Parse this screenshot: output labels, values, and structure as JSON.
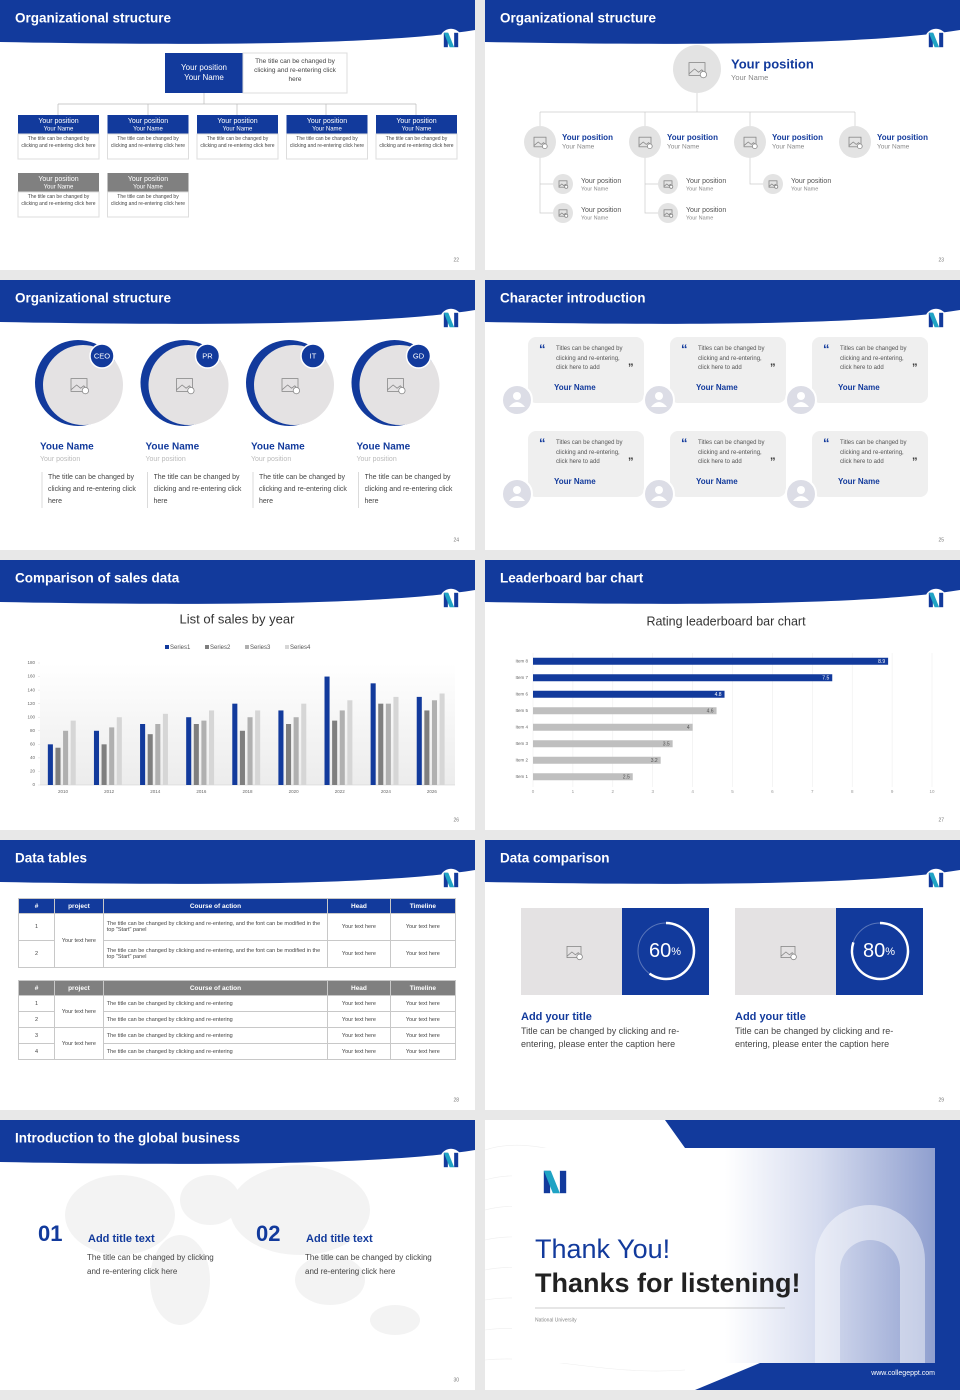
{
  "slides": [
    {
      "title": "Organizational structure",
      "page": "22",
      "top": {
        "position": "Your position",
        "name": "Your Name",
        "text": "The title can be changed by clicking and re-entering click here"
      },
      "boxes": [
        {
          "position": "Your position",
          "name": "Your Name",
          "text": "The title can be changed by clicking and re-entering click here"
        },
        {
          "position": "Your position",
          "name": "Your Name",
          "text": "The title can be changed by clicking and re-entering click here"
        },
        {
          "position": "Your position",
          "name": "Your Name",
          "text": "The title can be changed by clicking and re-entering click here"
        },
        {
          "position": "Your position",
          "name": "Your Name",
          "text": "The title can be changed by clicking and re-entering click here"
        },
        {
          "position": "Your position",
          "name": "Your Name",
          "text": "The title can be changed by clicking and re-entering click here"
        },
        {
          "position": "Your position",
          "name": "Your Name",
          "text": "The title can be changed by clicking and re-entering click here"
        },
        {
          "position": "Your position",
          "name": "Your Name",
          "text": "The title can be changed by clicking and re-entering click here"
        }
      ]
    },
    {
      "title": "Organizational structure",
      "page": "23",
      "top": {
        "position": "Your position",
        "name": "Your Name"
      },
      "level2": [
        {
          "position": "Your position",
          "name": "Your Name"
        },
        {
          "position": "Your position",
          "name": "Your Name"
        },
        {
          "position": "Your position",
          "name": "Your Name"
        },
        {
          "position": "Your position",
          "name": "Your Name"
        }
      ],
      "level3": [
        {
          "position": "Your position",
          "name": "Your Name"
        },
        {
          "position": "Your position",
          "name": "Your Name"
        },
        {
          "position": "Your position",
          "name": "Your Name"
        },
        {
          "position": "Your position",
          "name": "Your Name"
        },
        {
          "position": "Your position",
          "name": "Your Name"
        }
      ]
    },
    {
      "title": "Organizational structure",
      "page": "24",
      "members": [
        {
          "badge": "CEO",
          "name": "Youe Name",
          "position": "Your position",
          "text": "The title can be changed by clicking and re-entering click here"
        },
        {
          "badge": "PR",
          "name": "Youe Name",
          "position": "Your position",
          "text": "The title can be changed by clicking and re-entering click here"
        },
        {
          "badge": "IT",
          "name": "Youe Name",
          "position": "Your position",
          "text": "The title can be changed by clicking and re-entering click here"
        },
        {
          "badge": "GD",
          "name": "Youe Name",
          "position": "Your position",
          "text": "The title can be changed by clicking and re-entering click here"
        }
      ]
    },
    {
      "title": "Character introduction",
      "page": "25",
      "cards": [
        {
          "quote": "Titles can be changed by clicking and re-entering, click here to add",
          "name": "Your Name"
        },
        {
          "quote": "Titles can be changed by clicking and re-entering, click here to add",
          "name": "Your Name"
        },
        {
          "quote": "Titles can be changed by clicking and re-entering, click here to add",
          "name": "Your Name"
        },
        {
          "quote": "Titles can be changed by clicking and re-entering, click here to add",
          "name": "Your Name"
        },
        {
          "quote": "Titles can be changed by clicking and re-entering, click here to add",
          "name": "Your Name"
        },
        {
          "quote": "Titles can be changed by clicking and re-entering, click here to add",
          "name": "Your Name"
        }
      ]
    },
    {
      "title": "Comparison of sales data",
      "page": "26"
    },
    {
      "title": "Leaderboard bar chart",
      "page": "27"
    },
    {
      "title": "Data tables",
      "page": "28",
      "table1": {
        "header": [
          "#",
          "project",
          "Course of action",
          "Head",
          "Timeline"
        ],
        "rows": [
          [
            "1",
            "Your text here",
            "The title can be changed by clicking and re-entering, and the font can be modified in the top \"Start\" panel",
            "Your text here",
            "Your text here"
          ],
          [
            "2",
            "The title can be changed by clicking and re-entering, and the font can be modified in the top \"Start\" panel",
            "Your text here",
            "Your text here"
          ]
        ]
      },
      "table2": {
        "header": [
          "#",
          "project",
          "Course of action",
          "Head",
          "Timeline"
        ],
        "rows": [
          [
            "1",
            "Your text here",
            "The title can be changed by clicking and re-entering",
            "Your text here",
            "Your text here"
          ],
          [
            "2",
            "The title can be changed by clicking and re-entering",
            "Your text here",
            "Your text here"
          ],
          [
            "3",
            "Your text here",
            "The title can be changed by clicking and re-entering",
            "Your text here",
            "Your text here"
          ],
          [
            "4",
            "The title can be changed by clicking and re-entering",
            "Your text here",
            "Your text here"
          ]
        ]
      }
    },
    {
      "title": "Data comparison",
      "page": "29",
      "items": [
        {
          "value": 60,
          "unit": "%",
          "title": "Add your title",
          "text": "Title can be changed by clicking and re-entering, please enter the caption here"
        },
        {
          "value": 80,
          "unit": "%",
          "title": "Add your title",
          "text": "Title can be changed by clicking and re-entering, please enter the caption here"
        }
      ]
    },
    {
      "title": "Introduction to the global business",
      "page": "30",
      "items": [
        {
          "number": "01",
          "title": "Add title text",
          "text": "The title can be changed by clicking and re-entering click here"
        },
        {
          "number": "02",
          "title": "Add title text",
          "text": "The title can be changed by clicking and re-entering click here"
        }
      ]
    },
    {
      "thanks": "Thank You!",
      "subtitle": "Thanks for listening!",
      "university": "National University",
      "url": "www.collegeppt.com"
    }
  ],
  "chart_data": [
    {
      "type": "bar",
      "title": "List of sales by year",
      "categories": [
        "2010",
        "2012",
        "2014",
        "2016",
        "2018",
        "2020",
        "2022",
        "2024",
        "2026"
      ],
      "series": [
        {
          "name": "Series1",
          "color": "#123a9c",
          "values": [
            60,
            80,
            90,
            100,
            120,
            110,
            160,
            150,
            130
          ]
        },
        {
          "name": "Series2",
          "color": "#7f7f7f",
          "values": [
            55,
            60,
            75,
            90,
            80,
            90,
            95,
            120,
            110
          ]
        },
        {
          "name": "Series3",
          "color": "#b0b0b0",
          "values": [
            80,
            85,
            90,
            95,
            100,
            100,
            110,
            120,
            125
          ]
        },
        {
          "name": "Series4",
          "color": "#d6d6d6",
          "values": [
            95,
            100,
            105,
            110,
            110,
            120,
            125,
            130,
            135
          ]
        }
      ],
      "ylim": [
        0,
        180
      ],
      "yticks": [
        0,
        20,
        40,
        60,
        80,
        100,
        120,
        140,
        160,
        180
      ],
      "grid": false
    },
    {
      "type": "bar",
      "horizontal": true,
      "title": "Rating leaderboard bar chart",
      "categories": [
        "Item 1",
        "Item 2",
        "Item 3",
        "Item 4",
        "Item 5",
        "Item 6",
        "Item 7",
        "Item 8"
      ],
      "values": [
        2.5,
        3.2,
        3.5,
        4,
        4.6,
        4.8,
        7.5,
        8.9
      ],
      "colors": [
        "#bfbfbf",
        "#bfbfbf",
        "#bfbfbf",
        "#bfbfbf",
        "#bfbfbf",
        "#123a9c",
        "#123a9c",
        "#123a9c"
      ],
      "xlim": [
        0,
        10
      ],
      "xticks": [
        0,
        1,
        2,
        3,
        4,
        5,
        6,
        7,
        8,
        9,
        10
      ],
      "grid": true
    }
  ]
}
